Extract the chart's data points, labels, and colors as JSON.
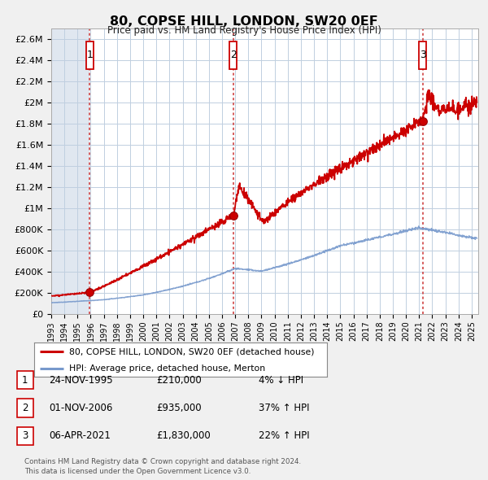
{
  "title": "80, COPSE HILL, LONDON, SW20 0EF",
  "subtitle": "Price paid vs. HM Land Registry's House Price Index (HPI)",
  "ylim": [
    0,
    2700000
  ],
  "xlim_start": 1993.0,
  "xlim_end": 2025.5,
  "background_color": "#f0f0f0",
  "plot_bg_color": "#e8eef5",
  "plot_active_bg": "#ffffff",
  "grid_color": "#c0cfe0",
  "red_line_color": "#cc0000",
  "blue_line_color": "#7799cc",
  "sale_dot_color": "#cc0000",
  "vline_color": "#cc3333",
  "purchases": [
    {
      "date_num": 1995.92,
      "price": 210000,
      "label": "1"
    },
    {
      "date_num": 2006.84,
      "price": 935000,
      "label": "2"
    },
    {
      "date_num": 2021.27,
      "price": 1830000,
      "label": "3"
    }
  ],
  "legend_entries": [
    "80, COPSE HILL, LONDON, SW20 0EF (detached house)",
    "HPI: Average price, detached house, Merton"
  ],
  "table_rows": [
    {
      "num": "1",
      "date": "24-NOV-1995",
      "price": "£210,000",
      "hpi": "4% ↓ HPI"
    },
    {
      "num": "2",
      "date": "01-NOV-2006",
      "price": "£935,000",
      "hpi": "37% ↑ HPI"
    },
    {
      "num": "3",
      "date": "06-APR-2021",
      "price": "£1,830,000",
      "hpi": "22% ↑ HPI"
    }
  ],
  "footnote": "Contains HM Land Registry data © Crown copyright and database right 2024.\nThis data is licensed under the Open Government Licence v3.0.",
  "ytick_labels": [
    "£0",
    "£200K",
    "£400K",
    "£600K",
    "£800K",
    "£1M",
    "£1.2M",
    "£1.4M",
    "£1.6M",
    "£1.8M",
    "£2M",
    "£2.2M",
    "£2.4M",
    "£2.6M"
  ],
  "ytick_values": [
    0,
    200000,
    400000,
    600000,
    800000,
    1000000,
    1200000,
    1400000,
    1600000,
    1800000,
    2000000,
    2200000,
    2400000,
    2600000
  ]
}
